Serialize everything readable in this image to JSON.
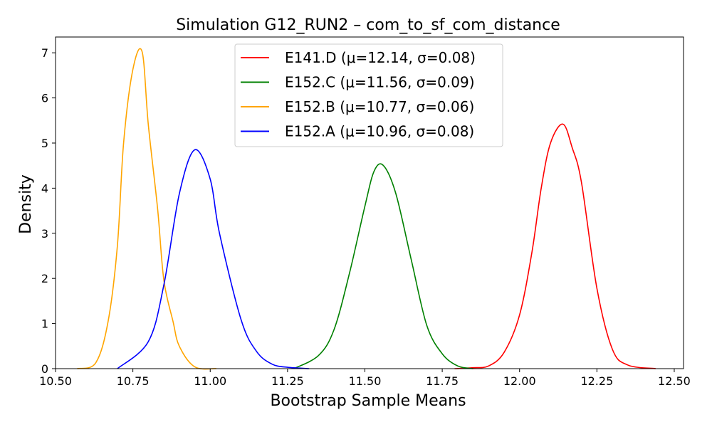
{
  "chart_data": {
    "type": "line",
    "title": "Simulation G12_RUN2 – com_to_sf_com_distance",
    "xlabel": "Bootstrap Sample Means",
    "ylabel": "Density",
    "xlim": [
      10.5,
      12.53
    ],
    "ylim": [
      0,
      7.35
    ],
    "xticks": [
      10.5,
      10.75,
      11.0,
      11.25,
      11.5,
      11.75,
      12.0,
      12.25,
      12.5
    ],
    "xtick_labels": [
      "10.50",
      "10.75",
      "11.00",
      "11.25",
      "11.50",
      "11.75",
      "12.00",
      "12.25",
      "12.50"
    ],
    "yticks": [
      0,
      1,
      2,
      3,
      4,
      5,
      6,
      7
    ],
    "ytick_labels": [
      "0",
      "1",
      "2",
      "3",
      "4",
      "5",
      "6",
      "7"
    ],
    "grid": false,
    "legend_position": "top-center",
    "series": [
      {
        "name": "E141.D (μ=12.14, σ=0.08)",
        "color": "#ff0000",
        "x": [
          11.79,
          11.85,
          11.9,
          11.95,
          12.0,
          12.04,
          12.07,
          12.1,
          12.14,
          12.17,
          12.2,
          12.25,
          12.3,
          12.35,
          12.44
        ],
        "y": [
          0.0,
          0.02,
          0.06,
          0.36,
          1.19,
          2.58,
          4.0,
          5.0,
          5.42,
          4.9,
          4.13,
          1.78,
          0.43,
          0.08,
          0.0
        ]
      },
      {
        "name": "E152.C (μ=11.56, σ=0.09)",
        "color": "#008000",
        "x": [
          11.27,
          11.35,
          11.4,
          11.45,
          11.5,
          11.53,
          11.56,
          11.6,
          11.65,
          11.7,
          11.75,
          11.8,
          11.85
        ],
        "y": [
          0.0,
          0.29,
          0.86,
          2.11,
          3.6,
          4.38,
          4.5,
          3.88,
          2.41,
          0.96,
          0.33,
          0.06,
          0.0
        ]
      },
      {
        "name": "E152.B (μ=10.77, σ=0.06)",
        "color": "#ffa500",
        "x": [
          10.57,
          10.63,
          10.67,
          10.7,
          10.72,
          10.75,
          10.78,
          10.8,
          10.83,
          10.85,
          10.88,
          10.9,
          10.95,
          11.02
        ],
        "y": [
          0.0,
          0.13,
          1.05,
          2.73,
          5.0,
          6.63,
          7.02,
          5.4,
          3.54,
          1.97,
          1.04,
          0.5,
          0.04,
          0.0
        ]
      },
      {
        "name": "E152.A (μ=10.96, σ=0.08)",
        "color": "#0000ff",
        "x": [
          10.7,
          10.8,
          10.85,
          10.9,
          10.95,
          11.0,
          11.03,
          11.1,
          11.15,
          11.2,
          11.25,
          11.32
        ],
        "y": [
          0.0,
          0.6,
          1.85,
          3.87,
          4.85,
          4.2,
          3.0,
          1.08,
          0.38,
          0.1,
          0.03,
          0.0
        ]
      }
    ]
  }
}
